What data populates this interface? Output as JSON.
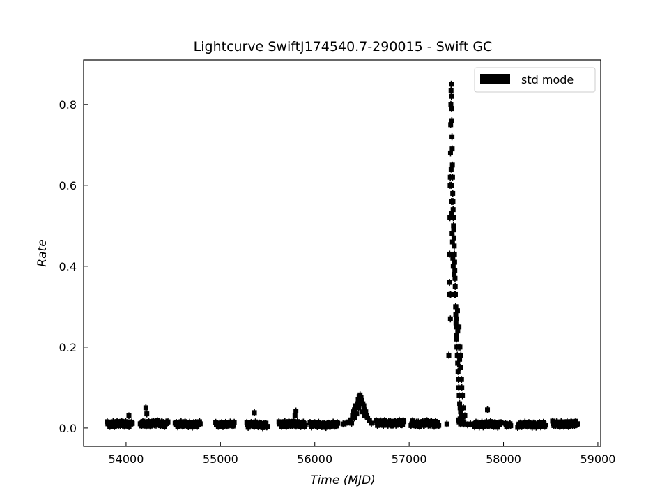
{
  "chart_data": {
    "type": "scatter",
    "title": "Lightcurve SwiftJ174540.7-290015 - Swift GC",
    "xlabel": "Time",
    "xlabel_unit": "MJD",
    "ylabel": "Rate",
    "xlim": [
      53550,
      59030
    ],
    "ylim": [
      -0.045,
      0.91
    ],
    "xticks": [
      54000,
      55000,
      56000,
      57000,
      58000,
      59000
    ],
    "yticks": [
      0.0,
      0.2,
      0.4,
      0.6,
      0.8
    ],
    "ytick_labels": [
      "0.0",
      "0.2",
      "0.4",
      "0.6",
      "0.8"
    ],
    "grid": false,
    "legend_position": "top-right",
    "series": [
      {
        "name": "std mode",
        "color": "#000000",
        "marker": "square",
        "segments": [
          {
            "x_start": 53800,
            "x_end": 54070,
            "y": 0.01,
            "y_spread": 0.012
          },
          {
            "x_start": 54150,
            "x_end": 54450,
            "y": 0.011,
            "y_spread": 0.012
          },
          {
            "x_start": 54520,
            "x_end": 54790,
            "y": 0.009,
            "y_spread": 0.012
          },
          {
            "x_start": 54950,
            "x_end": 55150,
            "y": 0.009,
            "y_spread": 0.01
          },
          {
            "x_start": 55280,
            "x_end": 55500,
            "y": 0.008,
            "y_spread": 0.012
          },
          {
            "x_start": 55620,
            "x_end": 55900,
            "y": 0.01,
            "y_spread": 0.012
          },
          {
            "x_start": 55950,
            "x_end": 56250,
            "y": 0.008,
            "y_spread": 0.011
          },
          {
            "x_start": 56650,
            "x_end": 56950,
            "y": 0.012,
            "y_spread": 0.012
          },
          {
            "x_start": 57020,
            "x_end": 57320,
            "y": 0.011,
            "y_spread": 0.012
          },
          {
            "x_start": 57680,
            "x_end": 57980,
            "y": 0.009,
            "y_spread": 0.012
          },
          {
            "x_start": 58020,
            "x_end": 58080,
            "y": 0.007,
            "y_spread": 0.008
          },
          {
            "x_start": 58150,
            "x_end": 58450,
            "y": 0.008,
            "y_spread": 0.011
          },
          {
            "x_start": 58520,
            "x_end": 58790,
            "y": 0.01,
            "y_spread": 0.012
          }
        ],
        "points": [
          {
            "x": 54030,
            "y": 0.03
          },
          {
            "x": 54220,
            "y": 0.035
          },
          {
            "x": 54210,
            "y": 0.05
          },
          {
            "x": 55360,
            "y": 0.038
          },
          {
            "x": 55790,
            "y": 0.03
          },
          {
            "x": 55800,
            "y": 0.042
          },
          {
            "x": 57830,
            "y": 0.045
          },
          {
            "x": 56300,
            "y": 0.01
          },
          {
            "x": 56330,
            "y": 0.012
          },
          {
            "x": 56360,
            "y": 0.015
          },
          {
            "x": 56380,
            "y": 0.02
          },
          {
            "x": 56400,
            "y": 0.03
          },
          {
            "x": 56410,
            "y": 0.04
          },
          {
            "x": 56420,
            "y": 0.045
          },
          {
            "x": 56430,
            "y": 0.055
          },
          {
            "x": 56440,
            "y": 0.05
          },
          {
            "x": 56450,
            "y": 0.06
          },
          {
            "x": 56460,
            "y": 0.07
          },
          {
            "x": 56470,
            "y": 0.078
          },
          {
            "x": 56480,
            "y": 0.082
          },
          {
            "x": 56490,
            "y": 0.075
          },
          {
            "x": 56500,
            "y": 0.068
          },
          {
            "x": 56510,
            "y": 0.06
          },
          {
            "x": 56520,
            "y": 0.055
          },
          {
            "x": 56530,
            "y": 0.045
          },
          {
            "x": 56540,
            "y": 0.04
          },
          {
            "x": 56550,
            "y": 0.03
          },
          {
            "x": 56560,
            "y": 0.025
          },
          {
            "x": 56580,
            "y": 0.018
          },
          {
            "x": 56600,
            "y": 0.012
          },
          {
            "x": 56420,
            "y": 0.025
          },
          {
            "x": 56445,
            "y": 0.035
          },
          {
            "x": 56465,
            "y": 0.05
          },
          {
            "x": 56485,
            "y": 0.06
          },
          {
            "x": 56505,
            "y": 0.04
          },
          {
            "x": 56525,
            "y": 0.03
          },
          {
            "x": 56390,
            "y": 0.012
          },
          {
            "x": 57400,
            "y": 0.01
          },
          {
            "x": 57420,
            "y": 0.18
          },
          {
            "x": 57425,
            "y": 0.33
          },
          {
            "x": 57428,
            "y": 0.36
          },
          {
            "x": 57430,
            "y": 0.43
          },
          {
            "x": 57432,
            "y": 0.52
          },
          {
            "x": 57434,
            "y": 0.6
          },
          {
            "x": 57436,
            "y": 0.62
          },
          {
            "x": 57438,
            "y": 0.68
          },
          {
            "x": 57440,
            "y": 0.75
          },
          {
            "x": 57442,
            "y": 0.8
          },
          {
            "x": 57444,
            "y": 0.835
          },
          {
            "x": 57446,
            "y": 0.85
          },
          {
            "x": 57448,
            "y": 0.82
          },
          {
            "x": 57450,
            "y": 0.79
          },
          {
            "x": 57452,
            "y": 0.76
          },
          {
            "x": 57454,
            "y": 0.72
          },
          {
            "x": 57456,
            "y": 0.69
          },
          {
            "x": 57458,
            "y": 0.65
          },
          {
            "x": 57460,
            "y": 0.62
          },
          {
            "x": 57462,
            "y": 0.58
          },
          {
            "x": 57464,
            "y": 0.56
          },
          {
            "x": 57466,
            "y": 0.54
          },
          {
            "x": 57468,
            "y": 0.52
          },
          {
            "x": 57470,
            "y": 0.5
          },
          {
            "x": 57472,
            "y": 0.49
          },
          {
            "x": 57475,
            "y": 0.47
          },
          {
            "x": 57478,
            "y": 0.45
          },
          {
            "x": 57480,
            "y": 0.43
          },
          {
            "x": 57482,
            "y": 0.41
          },
          {
            "x": 57484,
            "y": 0.39
          },
          {
            "x": 57486,
            "y": 0.37
          },
          {
            "x": 57488,
            "y": 0.35
          },
          {
            "x": 57490,
            "y": 0.33
          },
          {
            "x": 57492,
            "y": 0.3
          },
          {
            "x": 57494,
            "y": 0.28
          },
          {
            "x": 57496,
            "y": 0.26
          },
          {
            "x": 57498,
            "y": 0.25
          },
          {
            "x": 57500,
            "y": 0.23
          },
          {
            "x": 57503,
            "y": 0.22
          },
          {
            "x": 57506,
            "y": 0.2
          },
          {
            "x": 57510,
            "y": 0.18
          },
          {
            "x": 57514,
            "y": 0.16
          },
          {
            "x": 57518,
            "y": 0.14
          },
          {
            "x": 57522,
            "y": 0.12
          },
          {
            "x": 57526,
            "y": 0.1
          },
          {
            "x": 57530,
            "y": 0.08
          },
          {
            "x": 57535,
            "y": 0.06
          },
          {
            "x": 57540,
            "y": 0.05
          },
          {
            "x": 57545,
            "y": 0.04
          },
          {
            "x": 57550,
            "y": 0.03
          },
          {
            "x": 57560,
            "y": 0.02
          },
          {
            "x": 57570,
            "y": 0.015
          },
          {
            "x": 57580,
            "y": 0.01
          },
          {
            "x": 57600,
            "y": 0.01
          },
          {
            "x": 57620,
            "y": 0.008
          },
          {
            "x": 57650,
            "y": 0.01
          },
          {
            "x": 57445,
            "y": 0.64
          },
          {
            "x": 57447,
            "y": 0.6
          },
          {
            "x": 57449,
            "y": 0.56
          },
          {
            "x": 57451,
            "y": 0.53
          },
          {
            "x": 57455,
            "y": 0.48
          },
          {
            "x": 57459,
            "y": 0.46
          },
          {
            "x": 57463,
            "y": 0.42
          },
          {
            "x": 57467,
            "y": 0.4
          },
          {
            "x": 57476,
            "y": 0.38
          },
          {
            "x": 57485,
            "y": 0.33
          },
          {
            "x": 57495,
            "y": 0.3
          },
          {
            "x": 57505,
            "y": 0.27
          },
          {
            "x": 57515,
            "y": 0.24
          },
          {
            "x": 57525,
            "y": 0.2
          },
          {
            "x": 57535,
            "y": 0.17
          },
          {
            "x": 57545,
            "y": 0.15
          },
          {
            "x": 57555,
            "y": 0.12
          },
          {
            "x": 57565,
            "y": 0.08
          },
          {
            "x": 57575,
            "y": 0.05
          },
          {
            "x": 57590,
            "y": 0.03
          },
          {
            "x": 57512,
            "y": 0.29
          },
          {
            "x": 57528,
            "y": 0.25
          },
          {
            "x": 57538,
            "y": 0.2
          },
          {
            "x": 57548,
            "y": 0.18
          },
          {
            "x": 57558,
            "y": 0.1
          },
          {
            "x": 57440,
            "y": 0.33
          },
          {
            "x": 57437,
            "y": 0.27
          },
          {
            "x": 57520,
            "y": 0.02
          },
          {
            "x": 57530,
            "y": 0.015
          },
          {
            "x": 57545,
            "y": 0.01
          }
        ]
      }
    ]
  }
}
